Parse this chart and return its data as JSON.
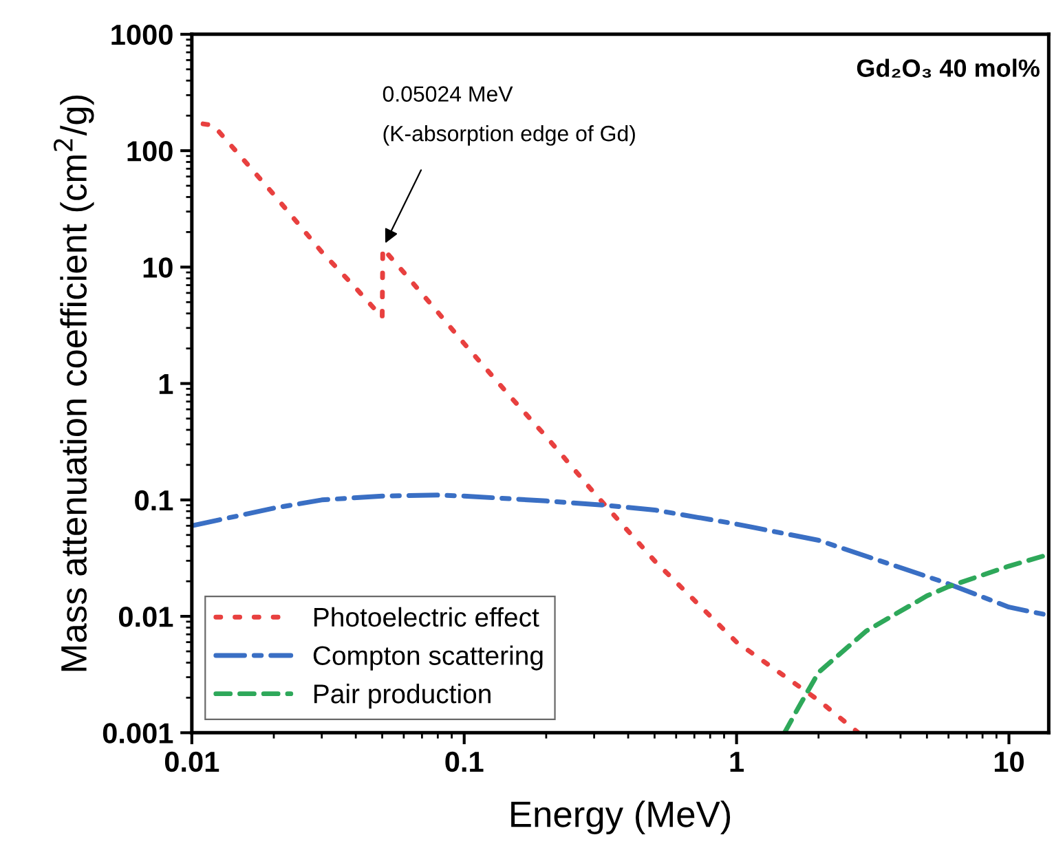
{
  "chart_data": {
    "type": "line",
    "xlabel": "Energy (MeV)",
    "ylabel": "Mass attenuation coefficient (cm$^{2}$/g)",
    "log": "xy",
    "xlim": [
      0.01,
      14
    ],
    "ylim": [
      0.001,
      1000
    ],
    "xticks": [
      0.01,
      0.1,
      1,
      10
    ],
    "yticks": [
      0.001,
      0.01,
      0.1,
      1,
      10,
      100,
      1000
    ],
    "grid": false,
    "legend": "bottom left",
    "annotations": [
      {
        "text": "0.05024 MeV\n(K-absorption edge of Gd)",
        "x": 0.05024,
        "y": 14.5
      },
      "Gd₂O₃ 40 mol%"
    ],
    "series": [
      {
        "name": "Photoelectric effect",
        "color": "#e8403f",
        "line_style": "dotted",
        "x": [
          0.011,
          0.012,
          0.015,
          0.02,
          0.03,
          0.04,
          0.05,
          0.05024,
          0.06,
          0.08,
          0.1,
          0.15,
          0.2,
          0.3,
          0.5,
          1,
          2,
          2.8
        ],
        "values": [
          170,
          165,
          91,
          42,
          13.5,
          6.6,
          3.7,
          14.5,
          9.0,
          4.1,
          2.2,
          0.74,
          0.35,
          0.115,
          0.03,
          0.006,
          0.0019,
          0.001
        ]
      },
      {
        "name": "Compton scattering",
        "color": "#3a6fc4",
        "line_style": "dashdot",
        "x": [
          0.01,
          0.02,
          0.03,
          0.05,
          0.08,
          0.1,
          0.2,
          0.33,
          0.5,
          1,
          2,
          5,
          6,
          10,
          14
        ],
        "values": [
          0.06,
          0.085,
          0.1,
          0.108,
          0.11,
          0.108,
          0.098,
          0.09,
          0.082,
          0.062,
          0.045,
          0.022,
          0.019,
          0.012,
          0.0102
        ]
      },
      {
        "name": "Pair production",
        "color": "#2ea85a",
        "line_style": "dashed",
        "x": [
          1.5,
          1.7,
          2,
          3,
          5,
          6,
          10,
          14
        ],
        "values": [
          0.001,
          0.0017,
          0.0033,
          0.0075,
          0.015,
          0.018,
          0.027,
          0.034
        ]
      }
    ]
  }
}
